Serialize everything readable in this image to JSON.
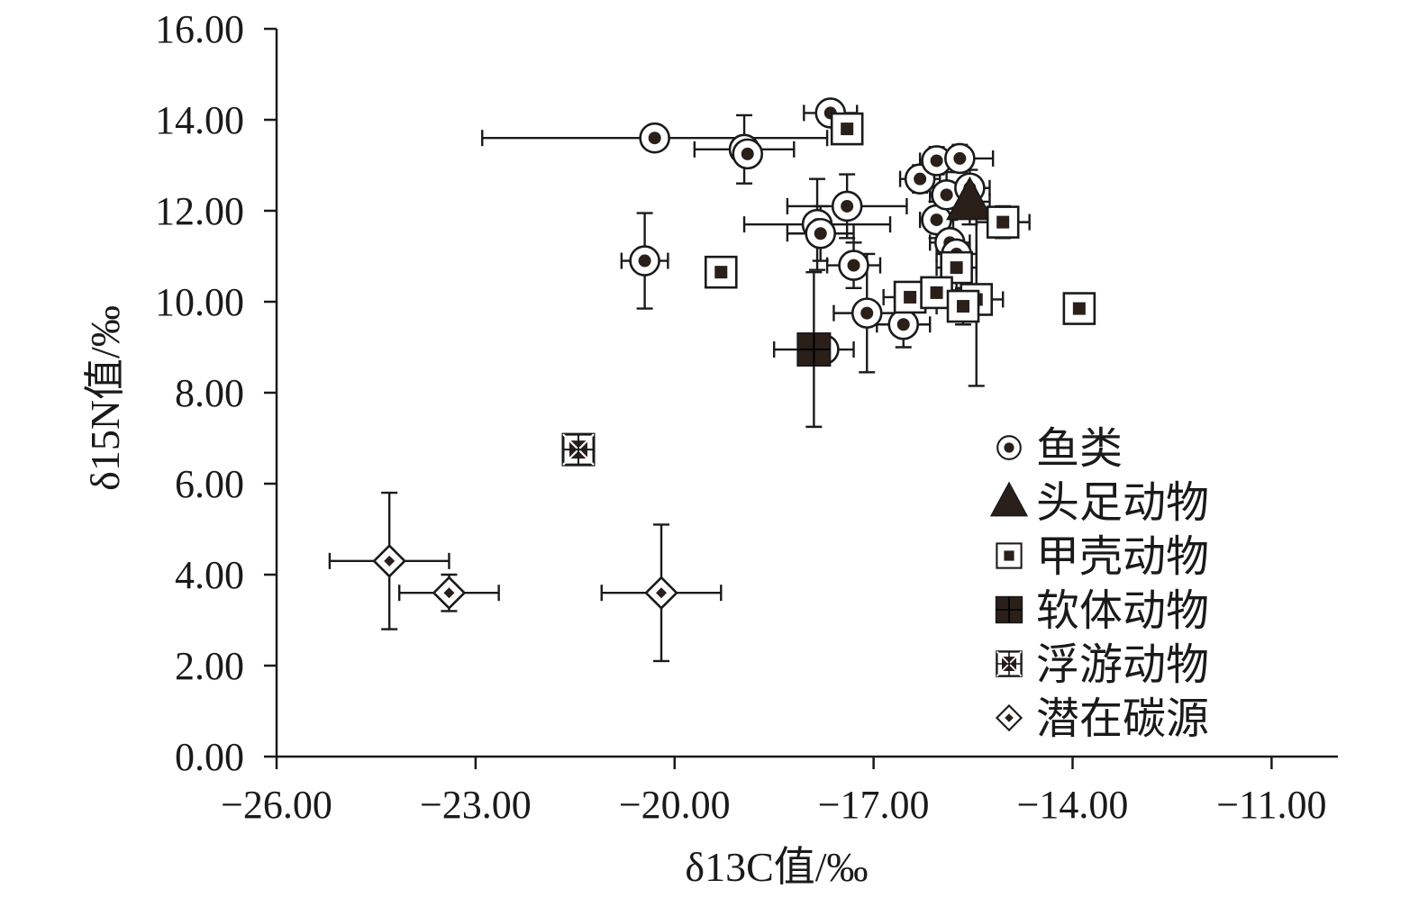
{
  "chart_data": {
    "type": "scatter",
    "title": "",
    "xlabel": "δ13C值/‰",
    "ylabel": "δ15N值/‰",
    "xlim": [
      -26,
      -10
    ],
    "ylim": [
      0,
      16
    ],
    "x_ticks": [
      "−26.00",
      "−23.00",
      "−20.00",
      "−17.00",
      "−14.00",
      "−11.00"
    ],
    "y_ticks": [
      "0.00",
      "2.00",
      "4.00",
      "6.00",
      "8.00",
      "10.00",
      "12.00",
      "14.00",
      "16.00"
    ],
    "grid": false,
    "legend_position": "bottom-right",
    "series": [
      {
        "name": "鱼类",
        "marker": "circle-dot",
        "points": [
          {
            "x": -20.3,
            "y": 13.6,
            "xerr": 2.6,
            "yerr": 0
          },
          {
            "x": -18.95,
            "y": 13.35,
            "xerr": 0.75,
            "yerr": 0.75
          },
          {
            "x": -18.9,
            "y": 13.25,
            "xerr": 0,
            "yerr": 0
          },
          {
            "x": -17.65,
            "y": 14.15,
            "xerr": 0.4,
            "yerr": 0
          },
          {
            "x": -20.45,
            "y": 10.9,
            "xerr": 0.35,
            "yerr": 1.05
          },
          {
            "x": -17.4,
            "y": 12.1,
            "xerr": 0.9,
            "yerr": 0.7
          },
          {
            "x": -17.85,
            "y": 11.7,
            "xerr": 1.1,
            "yerr": 1.0
          },
          {
            "x": -17.8,
            "y": 11.5,
            "xerr": 0.5,
            "yerr": 0.6
          },
          {
            "x": -17.3,
            "y": 10.8,
            "xerr": 0.4,
            "yerr": 0.5
          },
          {
            "x": -17.1,
            "y": 9.75,
            "xerr": 0.5,
            "yerr": 1.3
          },
          {
            "x": -16.55,
            "y": 9.5,
            "xerr": 0.4,
            "yerr": 0.5
          },
          {
            "x": -16.3,
            "y": 12.7,
            "xerr": 0.3,
            "yerr": 0.3
          },
          {
            "x": -16.05,
            "y": 13.1,
            "xerr": 0.25,
            "yerr": 0.3
          },
          {
            "x": -15.7,
            "y": 13.15,
            "xerr": 0.5,
            "yerr": 0.3
          },
          {
            "x": -16.05,
            "y": 11.8,
            "xerr": 0.25,
            "yerr": 0.4
          },
          {
            "x": -15.9,
            "y": 12.35,
            "xerr": 0.25,
            "yerr": 0.5
          },
          {
            "x": -15.55,
            "y": 12.5,
            "xerr": 0.3,
            "yerr": 0.4
          },
          {
            "x": -15.85,
            "y": 11.3,
            "xerr": 0.3,
            "yerr": 0.5
          },
          {
            "x": -15.75,
            "y": 11.05,
            "xerr": 0.3,
            "yerr": 0.3
          },
          {
            "x": -17.75,
            "y": 8.95,
            "xerr": 0,
            "yerr": 0
          }
        ]
      },
      {
        "name": "头足动物",
        "marker": "triangle",
        "points": [
          {
            "x": -15.55,
            "y": 12.2,
            "xerr": 0.3,
            "yerr": 0.5
          }
        ]
      },
      {
        "name": "甲壳动物",
        "marker": "square-dot",
        "points": [
          {
            "x": -17.4,
            "y": 13.8,
            "xerr": 0.15,
            "yerr": 0
          },
          {
            "x": -19.3,
            "y": 10.65,
            "xerr": 0.2,
            "yerr": 0.2
          },
          {
            "x": -15.05,
            "y": 11.75,
            "xerr": 0.4,
            "yerr": 0.35
          },
          {
            "x": -15.75,
            "y": 10.75,
            "xerr": 0.3,
            "yerr": 0.5
          },
          {
            "x": -15.45,
            "y": 10.05,
            "xerr": 0.4,
            "yerr": 1.9
          },
          {
            "x": -16.45,
            "y": 10.1,
            "xerr": 0.4,
            "yerr": 0.3
          },
          {
            "x": -16.05,
            "y": 10.2,
            "xerr": 0.4,
            "yerr": 0.3
          },
          {
            "x": -15.65,
            "y": 9.9,
            "xerr": 0.4,
            "yerr": 0.4
          },
          {
            "x": -13.9,
            "y": 9.85,
            "xerr": 0.2,
            "yerr": 0
          }
        ]
      },
      {
        "name": "软体动物",
        "marker": "square-filled",
        "points": [
          {
            "x": -17.9,
            "y": 8.95,
            "xerr": 0.6,
            "yerr": 1.7
          }
        ]
      },
      {
        "name": "浮游动物",
        "marker": "square-x",
        "points": [
          {
            "x": -21.45,
            "y": 6.75,
            "xerr": 0,
            "yerr": 0
          }
        ]
      },
      {
        "name": "潜在碳源",
        "marker": "diamond",
        "points": [
          {
            "x": -24.3,
            "y": 4.3,
            "xerr": 0.9,
            "yerr": 1.5
          },
          {
            "x": -23.4,
            "y": 3.6,
            "xerr": 0.75,
            "yerr": 0.4
          },
          {
            "x": -20.2,
            "y": 3.6,
            "xerr": 0.9,
            "yerr": 1.5
          }
        ]
      }
    ]
  }
}
